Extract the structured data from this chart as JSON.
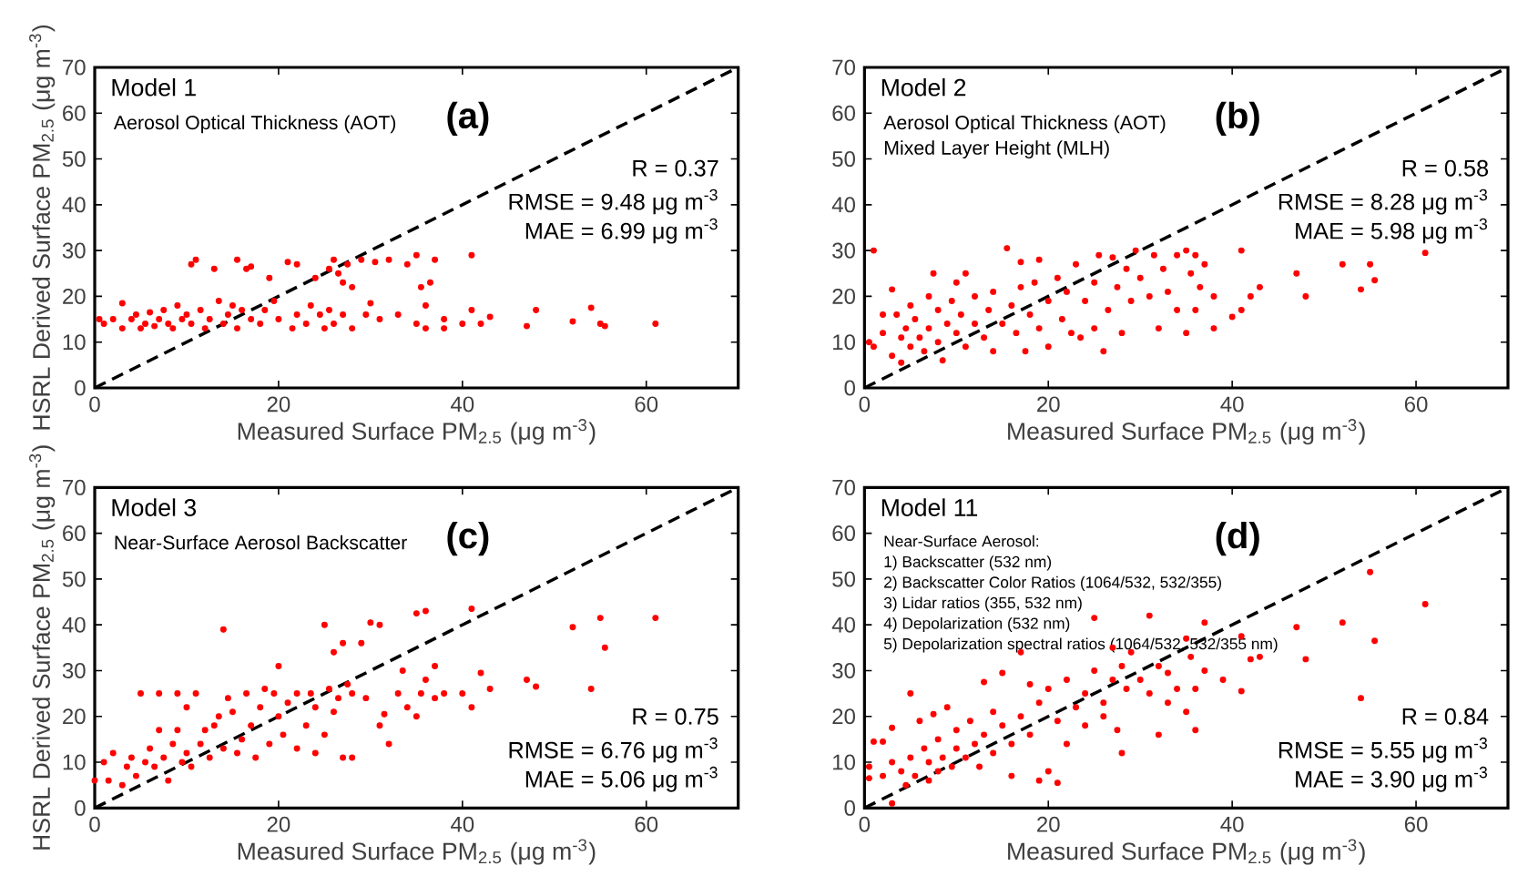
{
  "chart_data": [
    {
      "type": "scatter",
      "title": "Model 1",
      "xlabel": "Measured Surface PM$_{2.5}$ (μg m$^{-3}$)",
      "ylabel": "HSRL Derived Surface PM$_{2.5}$ (μg m$^{-3}$)",
      "xlim": [
        0,
        70
      ],
      "ylim": [
        0,
        70
      ],
      "xticks": [
        0,
        20,
        40,
        60
      ],
      "yticks": [
        0,
        10,
        20,
        30,
        40,
        50,
        60,
        70
      ],
      "annotations": [
        "(a)",
        "Aerosol Optical Thickness (AOT)",
        "R = 0.37",
        "RMSE = 9.48 μg m$^{-3}$",
        "MAE = 6.99 μg m$^{-3}$"
      ],
      "series": [
        {
          "color": "#ff0000",
          "marker": "circle",
          "x": [
            0.5,
            1,
            2,
            3,
            3,
            4,
            4.5,
            5,
            5.5,
            6,
            6.5,
            7,
            7.5,
            8,
            8.5,
            9,
            9.5,
            10,
            10.5,
            11,
            10.5,
            11.5,
            12,
            12.5,
            13,
            13.5,
            14,
            14.5,
            15,
            15.5,
            15.5,
            16,
            16.5,
            17,
            17,
            18,
            18.5,
            19,
            19.5,
            20,
            21,
            21.5,
            22,
            22,
            23,
            23.5,
            24,
            24.5,
            25,
            25.5,
            25.5,
            26,
            26,
            26.5,
            27,
            27,
            27.5,
            28,
            28,
            29,
            29.5,
            30,
            30.5,
            31,
            32,
            33,
            34,
            35,
            35,
            35.5,
            36,
            36,
            36.5,
            37,
            38,
            38,
            40,
            41,
            41,
            42,
            43,
            47,
            48,
            52,
            54,
            55,
            55.5,
            61
          ],
          "values": [
            15,
            14,
            15,
            18.5,
            13,
            15,
            16,
            13,
            14,
            16.5,
            13.5,
            15,
            17,
            14,
            13,
            18,
            15,
            16,
            27,
            28,
            14,
            17,
            13,
            15,
            26,
            19,
            14,
            16,
            18,
            28,
            13,
            17,
            26,
            15,
            26.5,
            14,
            17,
            24,
            19,
            15,
            27.5,
            13,
            16,
            27,
            14,
            18,
            24,
            16,
            13,
            26,
            17,
            28,
            14,
            25,
            23,
            16,
            27,
            13,
            22,
            28,
            16,
            18.5,
            27.5,
            15,
            28,
            16,
            27,
            29,
            14,
            22,
            18,
            13,
            23,
            28,
            15,
            13,
            14,
            29,
            17,
            14,
            15.5,
            13.5,
            17,
            14.5,
            17.5,
            14,
            13.5,
            14
          ]
        },
        {
          "type": "line",
          "color": "#000000",
          "line_style": "dashed",
          "marker": "none",
          "x": [
            0,
            70
          ],
          "values": [
            0,
            70
          ]
        }
      ]
    },
    {
      "type": "scatter",
      "title": "Model 2",
      "xlabel": "Measured Surface PM$_{2.5}$ (μg m$^{-3}$)",
      "xlim": [
        0,
        70
      ],
      "ylim": [
        0,
        70
      ],
      "xticks": [
        0,
        20,
        40,
        60
      ],
      "yticks": [
        0,
        10,
        20,
        30,
        40,
        50,
        60,
        70
      ],
      "annotations": [
        "(b)",
        "Aerosol Optical Thickness (AOT)",
        "Mixed Layer Height (MLH)",
        "R = 0.58",
        "RMSE = 8.28 μg m$^{-3}$",
        "MAE = 5.98 μg m$^{-3}$"
      ],
      "series": [
        {
          "color": "#ff0000",
          "marker": "circle",
          "x": [
            0.5,
            1,
            1,
            2,
            2,
            3,
            3,
            3.5,
            4,
            4,
            4.5,
            5,
            5,
            5.5,
            6,
            6.5,
            7,
            7,
            7.5,
            8,
            8,
            8.5,
            9,
            9.5,
            10,
            10,
            10.5,
            11,
            11,
            12,
            12,
            13,
            13.5,
            14,
            14,
            15,
            15.5,
            16,
            16.5,
            17,
            17,
            17.5,
            18,
            18.5,
            19,
            19,
            20,
            20,
            21,
            21.5,
            22,
            22.5,
            23,
            23.5,
            24,
            25,
            25,
            25.5,
            26,
            26.5,
            27,
            27.5,
            28,
            28.5,
            29,
            29.5,
            30,
            31,
            31.5,
            32,
            32.5,
            33,
            34,
            34,
            35,
            35,
            35.5,
            36,
            36,
            36.5,
            37,
            38,
            38,
            40,
            41,
            41,
            42,
            43,
            47,
            48,
            52,
            54,
            55,
            55.5,
            61
          ],
          "values": [
            10,
            30,
            9,
            16,
            12,
            21.5,
            7,
            16,
            5.5,
            11,
            13,
            9,
            18,
            15,
            11,
            8,
            20,
            13,
            25,
            10,
            17,
            6,
            14,
            19,
            12,
            23,
            16,
            25,
            9,
            14,
            20,
            11,
            17,
            8,
            21,
            14,
            30.5,
            18,
            12,
            22,
            27.5,
            8,
            16,
            23,
            13,
            28,
            19,
            9,
            24,
            15,
            21,
            12,
            27,
            11,
            19,
            23,
            13,
            29,
            8,
            17,
            28.5,
            22,
            12,
            26,
            19,
            30,
            24,
            20,
            29,
            13,
            26,
            21,
            29,
            17,
            30,
            12,
            25,
            17,
            29,
            22,
            27,
            13,
            20,
            15.5,
            30,
            17,
            20,
            22,
            25,
            20,
            27,
            21.5,
            27,
            23.5,
            29.5
          ]
        },
        {
          "type": "line",
          "color": "#000000",
          "line_style": "dashed",
          "marker": "none",
          "x": [
            0,
            70
          ],
          "values": [
            0,
            70
          ]
        }
      ]
    },
    {
      "type": "scatter",
      "title": "Model 3",
      "xlabel": "Measured Surface PM$_{2.5}$ (μg m$^{-3}$)",
      "ylabel": "HSRL Derived Surface PM$_{2.5}$ (μg m$^{-3}$)",
      "xlim": [
        0,
        70
      ],
      "ylim": [
        0,
        70
      ],
      "xticks": [
        0,
        20,
        40,
        60
      ],
      "yticks": [
        0,
        10,
        20,
        30,
        40,
        50,
        60,
        70
      ],
      "annotations": [
        "(c)",
        "Near-Surface Aerosol Backscatter",
        "R = 0.75",
        "RMSE = 6.76 μg m$^{-3}$",
        "MAE = 5.06 μg m$^{-3}$"
      ],
      "series": [
        {
          "color": "#ff0000",
          "marker": "circle",
          "x": [
            0,
            1,
            1.5,
            2,
            3,
            3.5,
            4,
            4.5,
            5,
            5.5,
            6,
            6.5,
            7,
            7,
            7.5,
            8,
            8.5,
            9,
            9,
            9.5,
            10,
            10,
            10.5,
            11,
            11.5,
            12,
            12.5,
            13,
            13.5,
            14,
            14,
            14.5,
            15,
            15.5,
            16,
            16.5,
            17,
            17.5,
            18,
            18.5,
            19,
            19.5,
            20,
            20,
            20.5,
            21,
            22,
            22,
            23,
            23.5,
            24,
            24,
            25,
            25,
            25.5,
            26,
            26,
            26.5,
            27,
            27,
            27.5,
            28,
            28,
            29,
            29.5,
            30,
            31,
            31,
            31.5,
            32,
            33,
            33.5,
            34,
            35,
            35,
            35.5,
            36,
            36,
            37,
            37,
            38,
            40,
            41,
            41,
            42,
            43,
            47,
            48,
            52,
            54,
            55,
            55.5,
            61
          ],
          "values": [
            6,
            10,
            6,
            12,
            5,
            9,
            11,
            7,
            25,
            10,
            13,
            9,
            25,
            17,
            11,
            6,
            14,
            25,
            17,
            10,
            22,
            12,
            9,
            25,
            14,
            17,
            11,
            18,
            20,
            39,
            13,
            24,
            21,
            12,
            15,
            25,
            18,
            11,
            22,
            26,
            14,
            25,
            31,
            20,
            16,
            23,
            25,
            13,
            18,
            25,
            12,
            22,
            40,
            16,
            26,
            34,
            21,
            24,
            36,
            11,
            27,
            11,
            25,
            36,
            24,
            40.5,
            40,
            18,
            20.5,
            14,
            25,
            30,
            22,
            42.5,
            20,
            25,
            43,
            28,
            31,
            24,
            25,
            25,
            43.5,
            22,
            29.5,
            26,
            28,
            26.5,
            39.5,
            26,
            41.5,
            35,
            41.5
          ]
        },
        {
          "type": "line",
          "color": "#000000",
          "line_style": "dashed",
          "marker": "none",
          "x": [
            0,
            70
          ],
          "values": [
            0,
            70
          ]
        }
      ]
    },
    {
      "type": "scatter",
      "title": "Model 11",
      "xlabel": "Measured Surface PM$_{2.5}$ (μg m$^{-3}$)",
      "xlim": [
        0,
        70
      ],
      "ylim": [
        0,
        70
      ],
      "xticks": [
        0,
        20,
        40,
        60
      ],
      "yticks": [
        0,
        10,
        20,
        30,
        40,
        50,
        60,
        70
      ],
      "annotations": [
        "(d)",
        "Near-Surface Aerosol:",
        "1) Backscatter (532 nm)",
        "2) Backscatter Color Ratios (1064/532, 532/355)",
        "3) Lidar ratios (355, 532 nm)",
        "4) Depolarization (532 nm)",
        "5) Depolarization spectral ratios (1064/532, 532/355 nm)",
        "R = 0.84",
        "RMSE = 5.55 μg m$^{-3}$",
        "MAE = 3.90 μg m$^{-3}$"
      ],
      "series": [
        {
          "color": "#ff0000",
          "marker": "circle",
          "x": [
            0.5,
            0.5,
            1,
            2,
            2,
            3,
            3,
            3,
            4,
            4.5,
            5,
            5,
            5.5,
            6,
            6.5,
            7,
            7,
            7.5,
            8,
            8,
            8.5,
            9,
            9.5,
            10,
            10,
            11,
            11.5,
            12,
            12.5,
            13,
            13,
            14,
            14,
            15,
            15,
            16,
            16,
            17,
            17,
            18,
            18,
            19,
            19,
            20,
            20,
            21,
            21,
            22,
            22,
            23,
            24,
            24,
            25,
            25,
            26,
            26,
            27,
            27,
            27.5,
            28,
            28,
            28.5,
            29,
            30,
            31,
            31,
            32,
            32,
            33,
            33,
            34,
            35,
            35,
            35.5,
            36,
            36,
            37,
            37,
            39,
            41,
            41,
            42,
            43,
            47,
            48,
            52,
            54,
            55,
            55.5,
            61
          ],
          "values": [
            6.5,
            9,
            14.5,
            14.5,
            7,
            1,
            17.5,
            10,
            8,
            5,
            25,
            11,
            7,
            19,
            13,
            10,
            6,
            20.5,
            8,
            15,
            11,
            22,
            9,
            13,
            17,
            11,
            19,
            14,
            9,
            27.5,
            16,
            12,
            21,
            18,
            29.5,
            14,
            7,
            34,
            20,
            16,
            27,
            6,
            23,
            8,
            26,
            5.5,
            19,
            28,
            14,
            22,
            25,
            18,
            41.5,
            30,
            20,
            23,
            35,
            28,
            17,
            12,
            31,
            26,
            34,
            28,
            42,
            25,
            16,
            31,
            23,
            29.5,
            26,
            37,
            21,
            33,
            17,
            26,
            30,
            40.5,
            28,
            37.5,
            25.5,
            32.5,
            33,
            39.5,
            32.5,
            40.5,
            24,
            51.5,
            36.5,
            44.5
          ]
        },
        {
          "type": "line",
          "color": "#000000",
          "line_style": "dashed",
          "marker": "none",
          "x": [
            0,
            70
          ],
          "values": [
            0,
            70
          ]
        }
      ]
    }
  ]
}
